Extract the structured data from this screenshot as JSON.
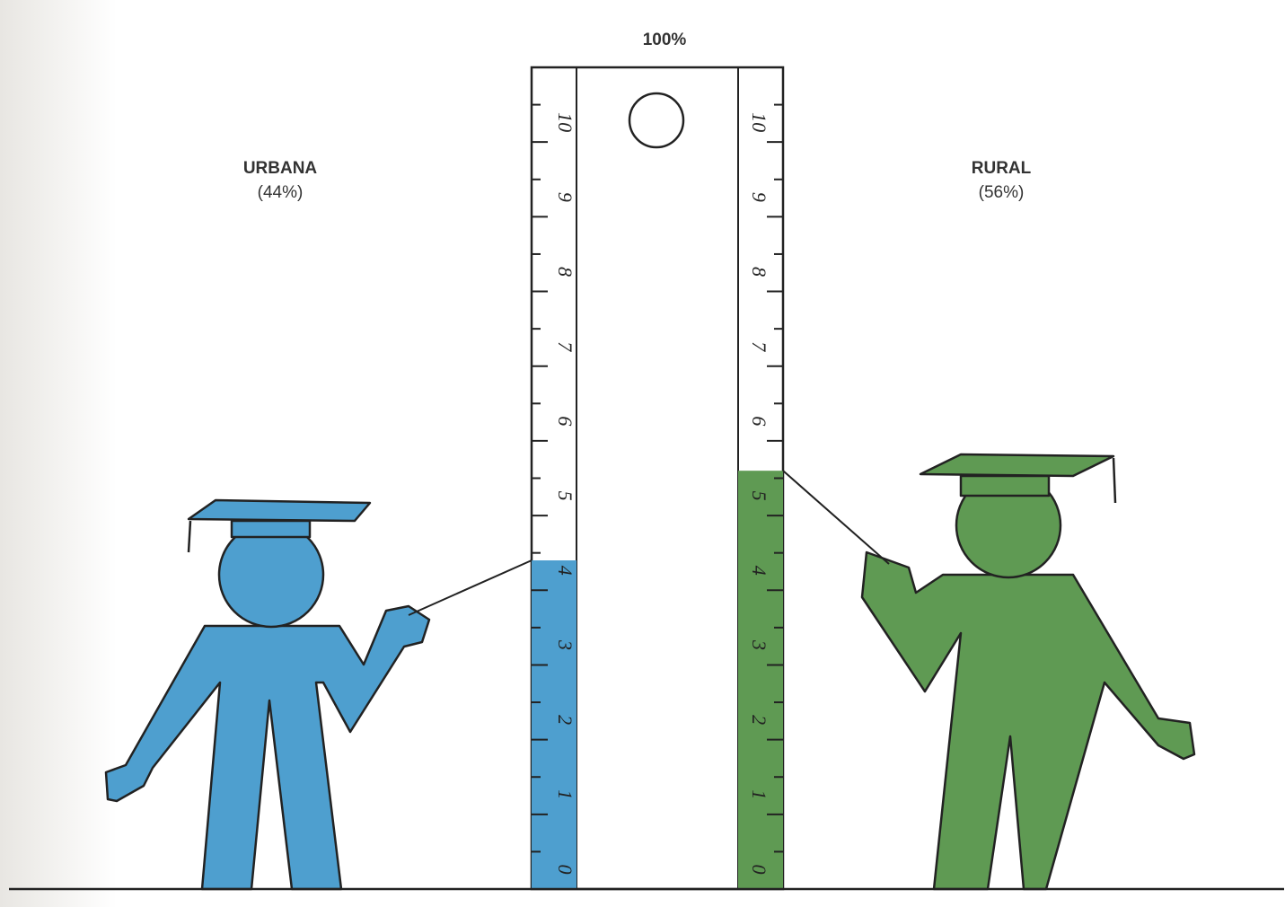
{
  "chart_data": {
    "type": "ruler",
    "title": "100%",
    "ylim": [
      0,
      11
    ],
    "yticks": [
      0,
      1,
      2,
      3,
      4,
      5,
      6,
      7,
      8,
      9,
      10
    ],
    "series": [
      {
        "name": "URBANA",
        "color": "#4e9fcf",
        "values": [
          4.4
        ],
        "value_labels": [
          "(44%)"
        ]
      },
      {
        "name": "RURAL",
        "color": "#5f9a53",
        "values": [
          5.6
        ],
        "value_labels": [
          "(56%)"
        ]
      }
    ]
  }
}
